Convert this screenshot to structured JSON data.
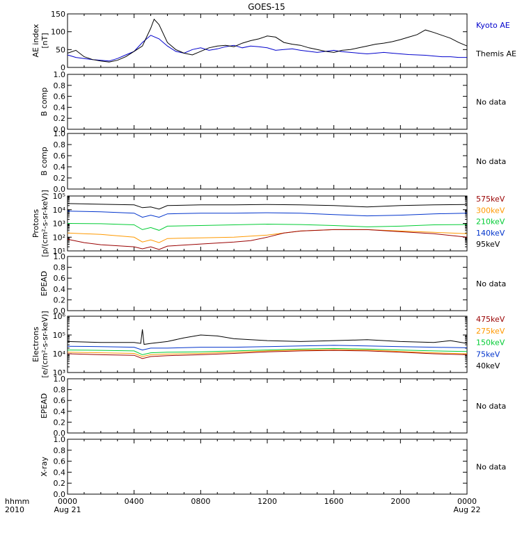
{
  "chart_data": {
    "type": "line",
    "title": "GOES-15",
    "x": {
      "start_hour": 0,
      "end_hour": 24,
      "tick_hours": [
        0,
        4,
        8,
        12,
        16,
        20,
        24
      ],
      "tick_labels": [
        "0000",
        "0400",
        "0800",
        "1200",
        "1600",
        "2000",
        "0000"
      ],
      "date_start": "Aug 21",
      "date_end": "Aug 22",
      "corner_label_top": "hhmm",
      "corner_label_bottom": "2010"
    },
    "panels": [
      {
        "id": "ae",
        "ylabel_lines": [
          "AE index",
          "[nT]"
        ],
        "scale": "linear",
        "ylim": [
          0,
          150
        ],
        "yticks": [
          0,
          50,
          100,
          150
        ],
        "series": [
          {
            "name": "Kyoto AE",
            "color": "#0000cc",
            "x": [
              0,
              0.5,
              1,
              1.5,
              2,
              2.5,
              3,
              3.5,
              4,
              4.5,
              5,
              5.5,
              6,
              6.5,
              7,
              7.5,
              8,
              8.5,
              9,
              9.5,
              10,
              10.5,
              11,
              11.5,
              12,
              12.5,
              13,
              13.5,
              14,
              14.5,
              15,
              15.5,
              16,
              16.5,
              17,
              17.5,
              18,
              18.5,
              19,
              19.5,
              20,
              20.5,
              21,
              21.5,
              22,
              22.5,
              23,
              23.5,
              24
            ],
            "values": [
              35,
              28,
              25,
              22,
              20,
              18,
              25,
              35,
              45,
              70,
              90,
              80,
              60,
              45,
              40,
              50,
              55,
              48,
              52,
              58,
              62,
              55,
              60,
              58,
              55,
              48,
              50,
              52,
              48,
              45,
              42,
              45,
              48,
              44,
              42,
              40,
              38,
              40,
              42,
              40,
              38,
              36,
              35,
              34,
              32,
              30,
              30,
              28,
              28
            ]
          },
          {
            "name": "Themis AE",
            "color": "#000000",
            "x": [
              0,
              0.5,
              1,
              1.5,
              2,
              2.5,
              3,
              3.5,
              4,
              4.5,
              5,
              5.2,
              5.5,
              6,
              6.5,
              7,
              7.5,
              8,
              8.5,
              9,
              9.5,
              10,
              10.5,
              11,
              11.5,
              12,
              12.5,
              13,
              13.5,
              14,
              14.5,
              15,
              15.5,
              16,
              16.5,
              17,
              17.5,
              18,
              18.5,
              19,
              19.5,
              20,
              20.5,
              21,
              21.5,
              22,
              22.5,
              23,
              23.5,
              24
            ],
            "values": [
              40,
              48,
              30,
              22,
              18,
              15,
              20,
              30,
              45,
              60,
              110,
              135,
              120,
              70,
              50,
              40,
              35,
              45,
              55,
              60,
              62,
              58,
              68,
              75,
              80,
              88,
              85,
              70,
              65,
              62,
              55,
              50,
              45,
              42,
              48,
              50,
              55,
              60,
              65,
              68,
              72,
              78,
              85,
              92,
              105,
              98,
              90,
              82,
              70,
              60
            ]
          }
        ],
        "legend": [
          "Kyoto AE",
          "Themis AE"
        ],
        "no_data": false
      },
      {
        "id": "bcomp1",
        "ylabel_lines": [
          "B comp"
        ],
        "scale": "linear",
        "ylim": [
          0,
          1
        ],
        "yticks": [
          0.0,
          0.2,
          0.4,
          0.6,
          0.8,
          1.0
        ],
        "ytick_labels": [
          "0.0",
          "0.2",
          "0.4",
          "0.6",
          "0.8",
          "1.0"
        ],
        "series": [],
        "no_data": true,
        "no_data_label": "No data"
      },
      {
        "id": "bcomp2",
        "ylabel_lines": [
          "B comp"
        ],
        "scale": "linear",
        "ylim": [
          0,
          1
        ],
        "yticks": [
          0.0,
          0.2,
          0.4,
          0.6,
          0.8,
          1.0
        ],
        "ytick_labels": [
          "0.0",
          "0.2",
          "0.4",
          "0.6",
          "0.8",
          "1.0"
        ],
        "series": [],
        "no_data": true,
        "no_data_label": "No data"
      },
      {
        "id": "protons",
        "ylabel_lines": [
          "Protons",
          "[p/(cm²-s-sr-keV)]"
        ],
        "scale": "log",
        "ylim": [
          1,
          5
        ],
        "yticks": [
          1,
          2,
          3,
          4,
          5
        ],
        "ytick_labels": [
          "10¹",
          "10²",
          "10³",
          "10⁴",
          "10⁵"
        ],
        "series": [
          {
            "name": "95keV",
            "color": "#000000",
            "x": [
              0,
              2,
              4,
              4.5,
              5,
              5.5,
              6,
              8,
              10,
              12,
              14,
              16,
              18,
              20,
              22,
              24
            ],
            "values": [
              4.45,
              4.4,
              4.35,
              4.15,
              4.2,
              4.05,
              4.3,
              4.35,
              4.35,
              4.38,
              4.35,
              4.3,
              4.2,
              4.3,
              4.35,
              4.38
            ]
          },
          {
            "name": "140keV",
            "color": "#0033cc",
            "x": [
              0,
              2,
              4,
              4.5,
              5,
              5.5,
              6,
              8,
              10,
              12,
              14,
              16,
              18,
              20,
              22,
              24
            ],
            "values": [
              3.9,
              3.85,
              3.75,
              3.45,
              3.6,
              3.45,
              3.7,
              3.75,
              3.75,
              3.78,
              3.75,
              3.65,
              3.55,
              3.6,
              3.7,
              3.75
            ]
          },
          {
            "name": "210keV",
            "color": "#00cc33",
            "x": [
              0,
              2,
              4,
              4.5,
              5,
              5.5,
              6,
              8,
              10,
              12,
              14,
              16,
              18,
              20,
              22,
              24
            ],
            "values": [
              3.0,
              2.98,
              2.9,
              2.55,
              2.7,
              2.5,
              2.8,
              2.85,
              2.9,
              2.95,
              2.92,
              2.85,
              2.75,
              2.8,
              2.9,
              2.92
            ]
          },
          {
            "name": "300keV",
            "color": "#ff9900",
            "x": [
              0,
              2,
              4,
              4.5,
              5,
              5.5,
              6,
              8,
              10,
              12,
              13,
              14,
              16,
              18,
              20,
              22,
              24
            ],
            "values": [
              2.3,
              2.2,
              2.0,
              1.65,
              1.8,
              1.6,
              1.9,
              1.95,
              2.0,
              2.15,
              2.3,
              2.45,
              2.55,
              2.55,
              2.45,
              2.35,
              2.25
            ]
          },
          {
            "name": "575keV",
            "color": "#990000",
            "x": [
              0,
              1,
              2,
              4,
              4.5,
              5,
              5.5,
              6,
              8,
              10,
              11,
              12,
              13,
              14,
              16,
              18,
              20,
              22,
              24
            ],
            "values": [
              1.85,
              1.6,
              1.45,
              1.3,
              1.15,
              1.3,
              1.1,
              1.35,
              1.5,
              1.65,
              1.75,
              2.0,
              2.3,
              2.45,
              2.55,
              2.55,
              2.4,
              2.25,
              2.0
            ]
          }
        ],
        "legend": [
          "575keV",
          "300keV",
          "210keV",
          "140keV",
          "95keV"
        ],
        "legend_colors": [
          "#990000",
          "#ff9900",
          "#00cc33",
          "#0033cc",
          "#000000"
        ],
        "no_data": false
      },
      {
        "id": "epead1",
        "ylabel_lines": [
          "EPEAD"
        ],
        "scale": "linear",
        "ylim": [
          0,
          1
        ],
        "yticks": [
          0.0,
          0.2,
          0.4,
          0.6,
          0.8,
          1.0
        ],
        "ytick_labels": [
          "0.0",
          "0.2",
          "0.4",
          "0.6",
          "0.8",
          "1.0"
        ],
        "series": [],
        "no_data": true,
        "no_data_label": "No data"
      },
      {
        "id": "electrons",
        "ylabel_lines": [
          "Electrons",
          "[e/(cm²-s-sr-keV)]"
        ],
        "scale": "log",
        "ylim": [
          3,
          6
        ],
        "yticks": [
          3,
          4,
          5,
          6
        ],
        "ytick_labels": [
          "10³",
          "10⁴",
          "10⁵",
          "10⁶"
        ],
        "series": [
          {
            "name": "40keV",
            "color": "#000000",
            "x": [
              0,
              2,
              4,
              4.4,
              4.5,
              4.6,
              5,
              6,
              7,
              8,
              9,
              10,
              12,
              14,
              16,
              18,
              20,
              22,
              23,
              24
            ],
            "values": [
              4.65,
              4.6,
              4.6,
              4.55,
              5.3,
              4.5,
              4.55,
              4.65,
              4.85,
              5.0,
              4.95,
              4.8,
              4.7,
              4.65,
              4.7,
              4.75,
              4.65,
              4.6,
              4.7,
              4.55
            ]
          },
          {
            "name": "75keV",
            "color": "#0033cc",
            "x": [
              0,
              2,
              4,
              4.5,
              5,
              6,
              8,
              10,
              12,
              14,
              16,
              18,
              20,
              22,
              24
            ],
            "values": [
              4.4,
              4.38,
              4.35,
              4.2,
              4.3,
              4.3,
              4.35,
              4.35,
              4.38,
              4.42,
              4.45,
              4.42,
              4.38,
              4.35,
              4.32
            ]
          },
          {
            "name": "150keV",
            "color": "#00cc33",
            "x": [
              0,
              2,
              4,
              4.5,
              5,
              6,
              8,
              10,
              12,
              14,
              16,
              18,
              20,
              22,
              24
            ],
            "values": [
              4.2,
              4.18,
              4.15,
              3.95,
              4.05,
              4.08,
              4.1,
              4.15,
              4.2,
              4.25,
              4.28,
              4.25,
              4.2,
              4.15,
              4.12
            ]
          },
          {
            "name": "275keV",
            "color": "#ff9900",
            "x": [
              0,
              2,
              4,
              4.5,
              5,
              6,
              8,
              10,
              12,
              14,
              16,
              18,
              20,
              22,
              24
            ],
            "values": [
              4.08,
              4.05,
              4.02,
              3.85,
              3.95,
              3.98,
              4.02,
              4.08,
              4.15,
              4.2,
              4.22,
              4.2,
              4.12,
              4.05,
              4.0
            ]
          },
          {
            "name": "475keV",
            "color": "#990000",
            "x": [
              0,
              2,
              4,
              4.5,
              5,
              6,
              8,
              10,
              12,
              14,
              16,
              18,
              20,
              22,
              24
            ],
            "values": [
              4.0,
              3.95,
              3.92,
              3.75,
              3.85,
              3.9,
              3.95,
              4.02,
              4.1,
              4.15,
              4.18,
              4.15,
              4.08,
              4.0,
              3.95
            ]
          }
        ],
        "legend": [
          "475keV",
          "275keV",
          "150keV",
          "75keV",
          "40keV"
        ],
        "legend_colors": [
          "#990000",
          "#ff9900",
          "#00cc33",
          "#0033cc",
          "#000000"
        ],
        "no_data": false
      },
      {
        "id": "epead2",
        "ylabel_lines": [
          "EPEAD"
        ],
        "scale": "linear",
        "ylim": [
          0,
          1
        ],
        "yticks": [
          0.0,
          0.2,
          0.4,
          0.6,
          0.8,
          1.0
        ],
        "ytick_labels": [
          "0.0",
          "0.2",
          "0.4",
          "0.6",
          "0.8",
          "1.0"
        ],
        "series": [],
        "no_data": true,
        "no_data_label": "No data"
      },
      {
        "id": "xray",
        "ylabel_lines": [
          "X-ray"
        ],
        "scale": "linear",
        "ylim": [
          0,
          1
        ],
        "yticks": [
          0.0,
          0.2,
          0.4,
          0.6,
          0.8,
          1.0
        ],
        "ytick_labels": [
          "0.0",
          "0.2",
          "0.4",
          "0.6",
          "0.8",
          "1.0"
        ],
        "series": [],
        "no_data": true,
        "no_data_label": "No data"
      }
    ]
  }
}
